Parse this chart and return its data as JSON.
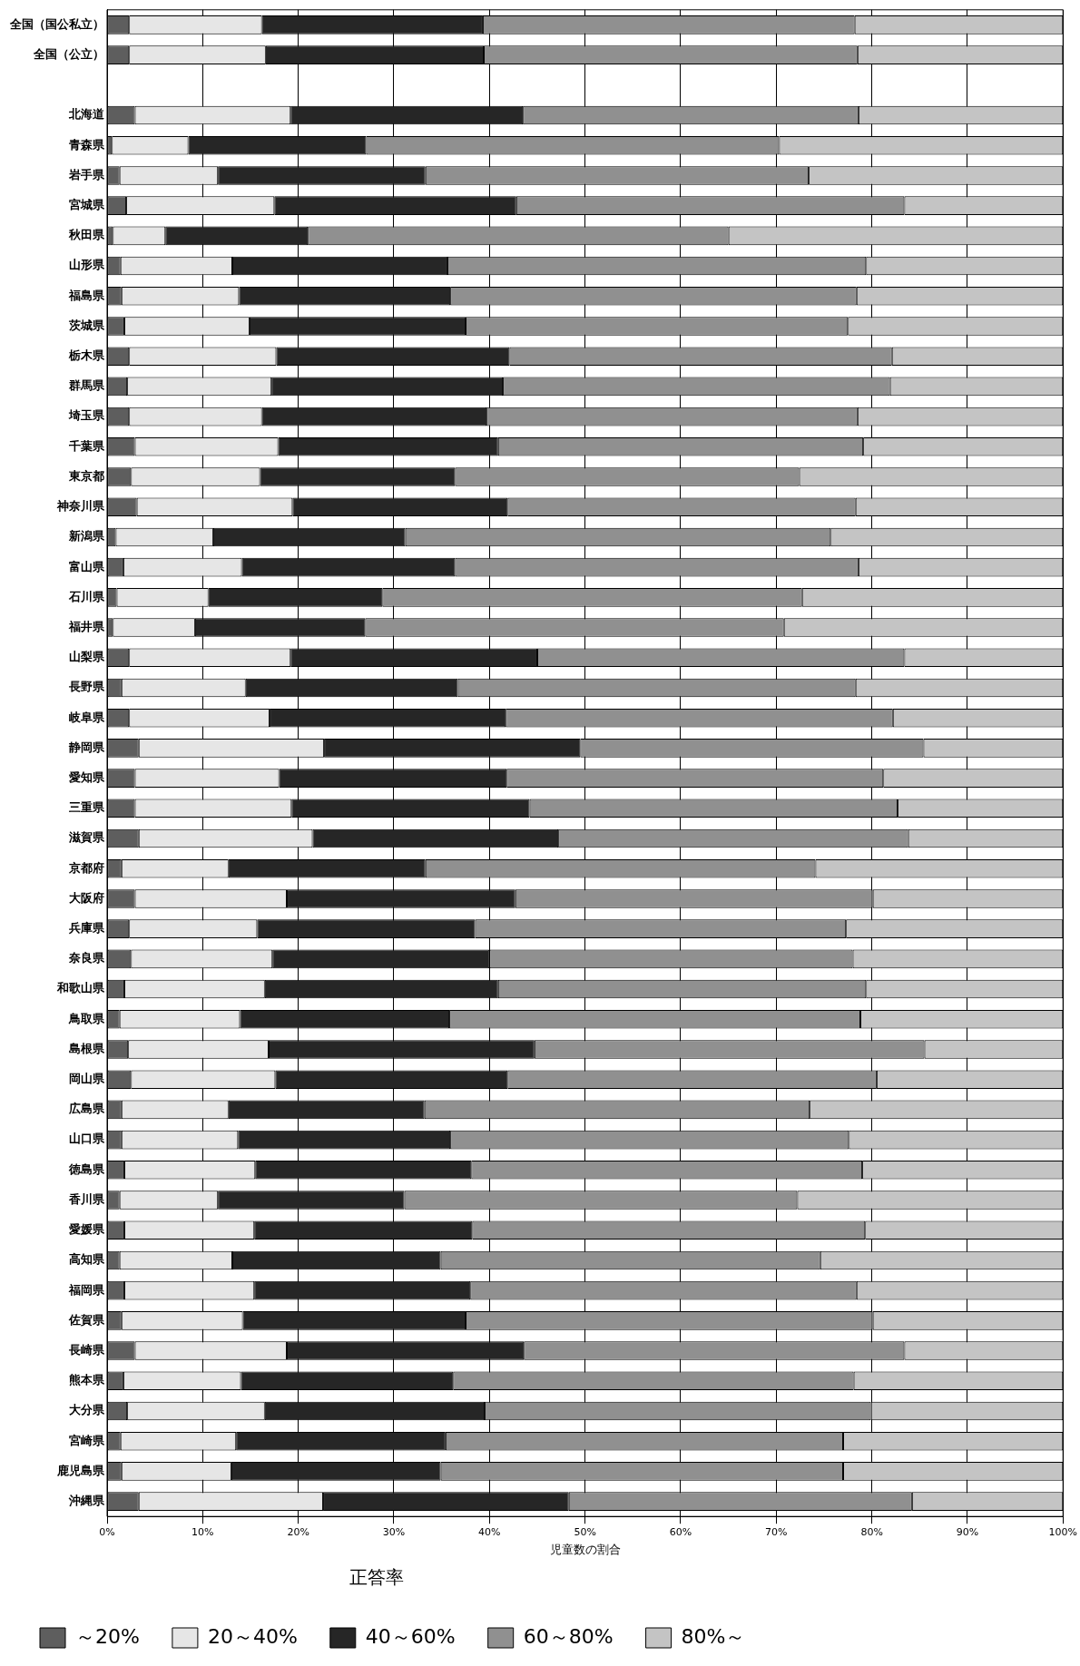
{
  "chart_data": {
    "type": "bar",
    "orientation": "horizontal",
    "stacked": true,
    "xlabel": "児童数の割合",
    "legend_title": "正答率",
    "legend": "bottom",
    "grid": "x",
    "categories": [
      "全国（国公私立）",
      "全国（公立）",
      null,
      "北海道",
      "青森県",
      "岩手県",
      "宮城県",
      "秋田県",
      "山形県",
      "福島県",
      "茨城県",
      "栃木県",
      "群馬県",
      "埼玉県",
      "千葉県",
      "東京都",
      "神奈川県",
      "新潟県",
      "富山県",
      "石川県",
      "福井県",
      "山梨県",
      "長野県",
      "岐阜県",
      "静岡県",
      "愛知県",
      "三重県",
      "滋賀県",
      "京都府",
      "大阪府",
      "兵庫県",
      "奈良県",
      "和歌山県",
      "鳥取県",
      "島根県",
      "岡山県",
      "広島県",
      "山口県",
      "徳島県",
      "香川県",
      "愛媛県",
      "高知県",
      "福岡県",
      "佐賀県",
      "長崎県",
      "熊本県",
      "大分県",
      "宮崎県",
      "鹿児島県",
      "沖縄県"
    ],
    "xlim": [
      0,
      100
    ],
    "xticks": [
      {
        "value": 0,
        "label": "0%"
      },
      {
        "value": 10,
        "label": "10%"
      },
      {
        "value": 20,
        "label": "20%"
      },
      {
        "value": 30,
        "label": "30%"
      },
      {
        "value": 40,
        "label": "40%"
      },
      {
        "value": 50,
        "label": "50%"
      },
      {
        "value": 60,
        "label": "60%"
      },
      {
        "value": 70,
        "label": "70%"
      },
      {
        "value": 80,
        "label": "80%"
      },
      {
        "value": 90,
        "label": "90%"
      },
      {
        "value": 100,
        "label": "100%"
      }
    ],
    "series": [
      {
        "name": "～20%",
        "color": "#5e5e5e",
        "values": [
          2.3,
          2.3,
          null,
          2.9,
          0.5,
          1.3,
          2.0,
          0.6,
          1.4,
          1.5,
          1.8,
          2.3,
          2.1,
          2.3,
          2.9,
          2.5,
          3.1,
          0.9,
          1.7,
          1.0,
          0.6,
          2.3,
          1.5,
          2.3,
          3.3,
          2.9,
          2.9,
          3.3,
          1.5,
          2.9,
          2.3,
          2.5,
          1.8,
          1.3,
          2.2,
          2.5,
          1.5,
          1.5,
          1.8,
          1.3,
          1.8,
          1.3,
          1.8,
          1.5,
          2.9,
          1.7,
          2.1,
          1.4,
          1.5,
          3.3
        ]
      },
      {
        "name": "20～40%",
        "color": "#e6e6e6",
        "values": [
          13.9,
          14.3,
          null,
          16.3,
          8.0,
          10.3,
          15.5,
          5.5,
          11.7,
          12.3,
          13.1,
          15.4,
          15.1,
          13.9,
          15.0,
          13.5,
          16.3,
          10.2,
          12.4,
          9.6,
          8.6,
          16.9,
          13.0,
          14.7,
          19.4,
          15.1,
          16.4,
          18.2,
          11.2,
          15.9,
          13.4,
          14.8,
          14.7,
          12.6,
          14.7,
          15.1,
          11.2,
          12.2,
          13.7,
          10.3,
          13.6,
          11.8,
          13.6,
          12.7,
          15.9,
          12.3,
          14.4,
          12.1,
          11.5,
          19.3
        ]
      },
      {
        "name": "40～60%",
        "color": "#262626",
        "values": [
          23.1,
          22.8,
          null,
          24.3,
          18.6,
          21.7,
          25.3,
          14.9,
          22.5,
          22.1,
          22.6,
          24.4,
          24.2,
          23.5,
          23.0,
          20.4,
          22.5,
          20.1,
          22.3,
          18.2,
          17.8,
          25.8,
          22.2,
          24.7,
          26.8,
          23.8,
          24.9,
          25.7,
          20.6,
          23.9,
          22.8,
          22.7,
          24.4,
          21.9,
          27.8,
          24.3,
          20.5,
          22.2,
          22.6,
          19.5,
          22.8,
          21.8,
          22.6,
          23.3,
          24.8,
          22.2,
          23.0,
          21.9,
          21.9,
          25.7
        ]
      },
      {
        "name": "60～80%",
        "color": "#909090",
        "values": [
          38.9,
          39.1,
          null,
          35.1,
          43.2,
          40.1,
          40.6,
          44.0,
          43.8,
          42.5,
          40.0,
          40.0,
          40.5,
          38.8,
          38.2,
          36.0,
          36.4,
          44.5,
          42.2,
          43.9,
          43.8,
          38.4,
          41.6,
          40.5,
          35.9,
          39.4,
          38.5,
          36.6,
          40.8,
          37.4,
          38.8,
          38.0,
          38.5,
          43.0,
          40.8,
          38.6,
          40.3,
          41.7,
          40.9,
          41.1,
          41.1,
          39.7,
          40.4,
          42.6,
          39.8,
          41.9,
          40.4,
          41.6,
          42.1,
          35.9
        ]
      },
      {
        "name": "80%～",
        "color": "#c4c4c4",
        "values": [
          21.8,
          21.5,
          null,
          21.4,
          29.7,
          26.6,
          16.6,
          35.0,
          20.6,
          21.6,
          22.5,
          17.9,
          18.1,
          21.5,
          20.9,
          27.6,
          21.7,
          24.3,
          21.4,
          27.3,
          29.2,
          16.6,
          21.7,
          17.8,
          14.6,
          18.8,
          17.3,
          16.2,
          25.9,
          19.9,
          22.7,
          22.0,
          20.6,
          21.2,
          14.5,
          19.5,
          26.5,
          22.4,
          21.0,
          27.8,
          20.7,
          25.4,
          21.6,
          19.9,
          16.6,
          21.9,
          20.1,
          23.0,
          23.0,
          15.8
        ]
      }
    ]
  }
}
